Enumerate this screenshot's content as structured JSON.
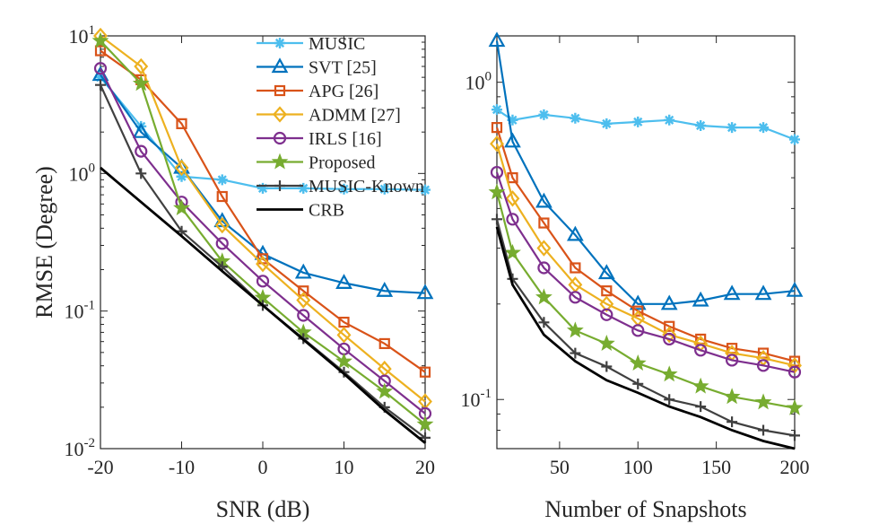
{
  "chart_data": [
    {
      "type": "line",
      "yscale": "log",
      "xlabel": "SNR (dB)",
      "ylabel": "RMSE (Degree)",
      "xlim": [
        -20,
        20
      ],
      "ylim": [
        0.01,
        10
      ],
      "xticks": [
        -20,
        -10,
        0,
        10,
        20
      ],
      "xtick_labels": [
        "-20",
        "-10",
        "0",
        "10",
        "20"
      ],
      "yticks": [
        0.01,
        0.1,
        1,
        10
      ],
      "ytick_labels": [
        {
          "base": "10",
          "exp": "-2"
        },
        {
          "base": "10",
          "exp": "-1"
        },
        {
          "base": "10",
          "exp": "0"
        },
        {
          "base": "10",
          "exp": "1"
        }
      ],
      "x": [
        -20,
        -15,
        -10,
        -5,
        0,
        5,
        10,
        15,
        20
      ],
      "series": [
        {
          "name": "MUSIC",
          "key": "music",
          "values": [
            5.0,
            2.2,
            0.95,
            0.9,
            0.78,
            0.78,
            0.77,
            0.77,
            0.76
          ]
        },
        {
          "name": "SVT [25]",
          "key": "svt",
          "values": [
            5.2,
            2.0,
            1.1,
            0.45,
            0.26,
            0.19,
            0.16,
            0.14,
            0.135
          ]
        },
        {
          "name": "APG [26]",
          "key": "apg",
          "values": [
            7.8,
            4.8,
            2.3,
            0.68,
            0.24,
            0.14,
            0.083,
            0.058,
            0.036
          ]
        },
        {
          "name": "ADMM [27]",
          "key": "admm",
          "values": [
            10.0,
            6.0,
            1.1,
            0.42,
            0.22,
            0.12,
            0.067,
            0.038,
            0.022
          ]
        },
        {
          "name": "IRLS [16]",
          "key": "irls",
          "values": [
            5.8,
            1.45,
            0.62,
            0.31,
            0.165,
            0.093,
            0.053,
            0.031,
            0.018
          ]
        },
        {
          "name": "Proposed",
          "key": "proposed",
          "values": [
            9.2,
            4.5,
            0.56,
            0.23,
            0.125,
            0.07,
            0.043,
            0.026,
            0.015
          ]
        },
        {
          "name": "MUSIC-Known",
          "key": "music_known",
          "values": [
            4.4,
            1.0,
            0.38,
            0.21,
            0.11,
            0.063,
            0.036,
            0.02,
            0.012
          ]
        },
        {
          "name": "CRB",
          "key": "crb",
          "values": [
            1.1,
            0.62,
            0.35,
            0.195,
            0.11,
            0.062,
            0.035,
            0.019,
            0.011
          ]
        }
      ]
    },
    {
      "type": "line",
      "yscale": "log",
      "xlabel": "Number of Snapshots",
      "ylabel": "",
      "xlim": [
        10,
        200
      ],
      "ylim": [
        0.07,
        1.4
      ],
      "xticks": [
        50,
        100,
        150,
        200
      ],
      "xtick_labels": [
        "50",
        "100",
        "150",
        "200"
      ],
      "yticks": [
        0.1,
        1
      ],
      "ytick_labels": [
        {
          "base": "10",
          "exp": "-1"
        },
        {
          "base": "10",
          "exp": "0"
        }
      ],
      "x": [
        10,
        20,
        40,
        60,
        80,
        100,
        120,
        140,
        160,
        180,
        200
      ],
      "series": [
        {
          "name": "MUSIC",
          "key": "music",
          "values": [
            0.82,
            0.76,
            0.79,
            0.77,
            0.74,
            0.75,
            0.76,
            0.73,
            0.72,
            0.72,
            0.66
          ]
        },
        {
          "name": "SVT [25]",
          "key": "svt",
          "values": [
            1.35,
            0.65,
            0.42,
            0.33,
            0.25,
            0.2,
            0.2,
            0.205,
            0.215,
            0.215,
            0.22
          ]
        },
        {
          "name": "APG [26]",
          "key": "apg",
          "values": [
            0.72,
            0.5,
            0.36,
            0.26,
            0.22,
            0.19,
            0.17,
            0.155,
            0.145,
            0.14,
            0.132
          ]
        },
        {
          "name": "ADMM [27]",
          "key": "admm",
          "values": [
            0.64,
            0.43,
            0.3,
            0.23,
            0.2,
            0.18,
            0.16,
            0.15,
            0.14,
            0.135,
            0.128
          ]
        },
        {
          "name": "IRLS [16]",
          "key": "irls",
          "values": [
            0.52,
            0.37,
            0.26,
            0.21,
            0.185,
            0.165,
            0.155,
            0.143,
            0.133,
            0.128,
            0.122
          ]
        },
        {
          "name": "Proposed",
          "key": "proposed",
          "values": [
            0.45,
            0.29,
            0.21,
            0.165,
            0.15,
            0.13,
            0.12,
            0.11,
            0.102,
            0.098,
            0.094
          ]
        },
        {
          "name": "MUSIC-Known",
          "key": "music_known",
          "values": [
            0.37,
            0.24,
            0.175,
            0.14,
            0.127,
            0.112,
            0.1,
            0.095,
            0.085,
            0.08,
            0.077
          ]
        },
        {
          "name": "CRB",
          "key": "crb",
          "values": [
            0.35,
            0.23,
            0.16,
            0.132,
            0.115,
            0.105,
            0.095,
            0.088,
            0.08,
            0.074,
            0.07
          ]
        }
      ]
    }
  ],
  "legend": {
    "placement": "top-right of left panel",
    "entries": [
      "MUSIC",
      "SVT [25]",
      "APG [26]",
      "ADMM [27]",
      "IRLS [16]",
      "Proposed",
      "MUSIC-Known",
      "CRB"
    ]
  },
  "styles": {
    "music": {
      "color": "#4DBEEE",
      "marker": "asterisk"
    },
    "svt": {
      "color": "#0072BD",
      "marker": "triangle"
    },
    "apg": {
      "color": "#D95319",
      "marker": "square"
    },
    "admm": {
      "color": "#EDB120",
      "marker": "diamond"
    },
    "irls": {
      "color": "#7E2F8E",
      "marker": "circle"
    },
    "proposed": {
      "color": "#77AC30",
      "marker": "star"
    },
    "music_known": {
      "color": "#404040",
      "marker": "plus"
    },
    "crb": {
      "color": "#000000",
      "marker": "none"
    }
  }
}
